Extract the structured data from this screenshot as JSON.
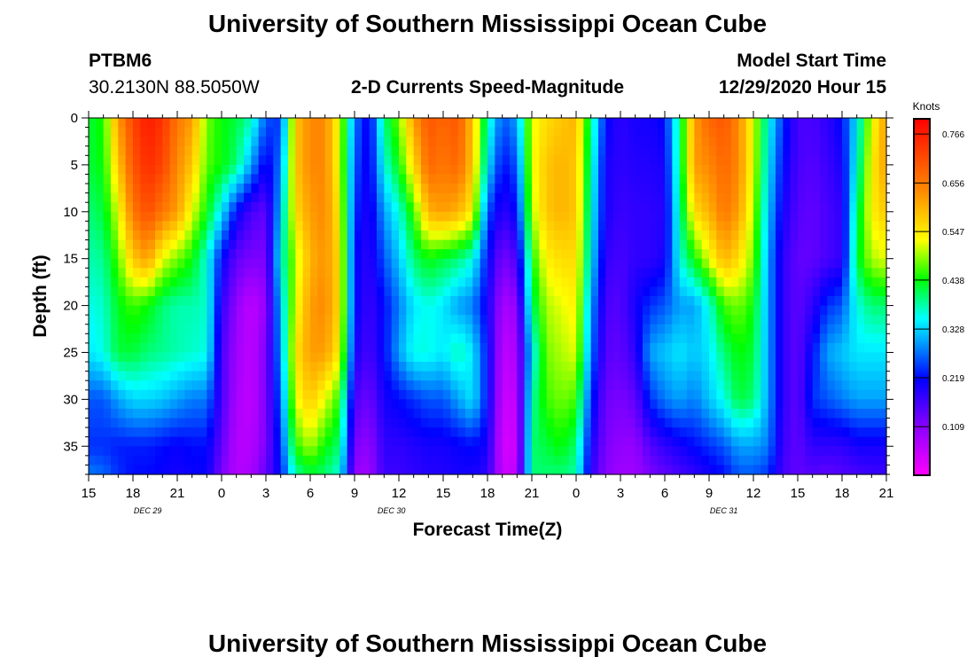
{
  "header": {
    "title": "University of Southern Mississippi Ocean Cube",
    "station_id": "PTBM6",
    "station_location": "30.2130N 88.5050W",
    "chart_subtitle": "2-D Currents Speed-Magnitude",
    "model_label": "Model Start Time",
    "model_start": "12/29/2020 Hour 15"
  },
  "footer": {
    "title": "University of Southern Mississippi Ocean Cube"
  },
  "chart_data": {
    "type": "heatmap",
    "title": "2-D Currents Speed-Magnitude",
    "xlabel": "Forecast Time(Z)",
    "ylabel": "Depth (ft)",
    "x_ticks": [
      "15",
      "18",
      "21",
      "0",
      "3",
      "6",
      "9",
      "12",
      "15",
      "18",
      "21",
      "0",
      "3",
      "6",
      "9",
      "12",
      "15",
      "18",
      "21"
    ],
    "x_range_hours": [
      0,
      54
    ],
    "date_labels": [
      {
        "label": "DEC 29",
        "hour": 4
      },
      {
        "label": "DEC 30",
        "hour": 20.5
      },
      {
        "label": "DEC 31",
        "hour": 43
      }
    ],
    "y_ticks": [
      0,
      5,
      10,
      15,
      20,
      25,
      30,
      35
    ],
    "ylim": [
      0,
      38
    ],
    "y_inverted": true,
    "colorbar": {
      "units": "Knots",
      "min": 0.0,
      "max": 0.8,
      "ticks": [
        0.766,
        0.656,
        0.547,
        0.438,
        0.328,
        0.219,
        0.109
      ]
    },
    "depths": [
      0,
      5,
      10,
      15,
      20,
      25,
      30,
      35,
      38
    ],
    "columns": [
      {
        "hour": 0,
        "values": [
          0.42,
          0.42,
          0.4,
          0.38,
          0.36,
          0.34,
          0.26,
          0.24,
          0.28
        ]
      },
      {
        "hour": 1,
        "values": [
          0.45,
          0.44,
          0.42,
          0.39,
          0.37,
          0.36,
          0.26,
          0.24,
          0.27
        ]
      },
      {
        "hour": 2,
        "values": [
          0.62,
          0.58,
          0.52,
          0.47,
          0.43,
          0.42,
          0.3,
          0.23,
          0.24
        ]
      },
      {
        "hour": 3,
        "values": [
          0.72,
          0.7,
          0.66,
          0.58,
          0.46,
          0.42,
          0.33,
          0.23,
          0.22
        ]
      },
      {
        "hour": 4,
        "values": [
          0.77,
          0.75,
          0.71,
          0.62,
          0.44,
          0.4,
          0.33,
          0.23,
          0.22
        ]
      },
      {
        "hour": 5,
        "values": [
          0.74,
          0.72,
          0.66,
          0.52,
          0.4,
          0.39,
          0.32,
          0.22,
          0.21
        ]
      },
      {
        "hour": 6,
        "values": [
          0.66,
          0.64,
          0.62,
          0.48,
          0.38,
          0.38,
          0.3,
          0.21,
          0.2
        ]
      },
      {
        "hour": 7,
        "values": [
          0.62,
          0.58,
          0.52,
          0.44,
          0.38,
          0.37,
          0.28,
          0.22,
          0.21
        ]
      },
      {
        "hour": 8,
        "values": [
          0.48,
          0.47,
          0.44,
          0.36,
          0.37,
          0.36,
          0.28,
          0.22,
          0.21
        ]
      },
      {
        "hour": 9,
        "values": [
          0.44,
          0.44,
          0.34,
          0.22,
          0.18,
          0.16,
          0.16,
          0.14,
          0.12
        ]
      },
      {
        "hour": 10,
        "values": [
          0.42,
          0.4,
          0.22,
          0.14,
          0.1,
          0.09,
          0.08,
          0.07,
          0.07
        ]
      },
      {
        "hour": 11,
        "values": [
          0.38,
          0.3,
          0.16,
          0.12,
          0.06,
          0.06,
          0.06,
          0.07,
          0.08
        ]
      },
      {
        "hour": 12,
        "values": [
          0.26,
          0.2,
          0.14,
          0.12,
          0.1,
          0.12,
          0.12,
          0.12,
          0.14
        ]
      },
      {
        "hour": 13,
        "values": [
          0.24,
          0.28,
          0.32,
          0.36,
          0.32,
          0.3,
          0.27,
          0.24,
          0.22
        ]
      },
      {
        "hour": 14,
        "values": [
          0.58,
          0.58,
          0.56,
          0.5,
          0.52,
          0.55,
          0.52,
          0.45,
          0.38
        ]
      },
      {
        "hour": 15,
        "values": [
          0.64,
          0.64,
          0.62,
          0.6,
          0.62,
          0.62,
          0.58,
          0.5,
          0.42
        ]
      },
      {
        "hour": 16,
        "values": [
          0.64,
          0.64,
          0.64,
          0.63,
          0.64,
          0.62,
          0.52,
          0.44,
          0.4
        ]
      },
      {
        "hour": 17,
        "values": [
          0.52,
          0.52,
          0.54,
          0.56,
          0.56,
          0.54,
          0.45,
          0.4,
          0.36
        ]
      },
      {
        "hour": 18,
        "values": [
          0.28,
          0.26,
          0.24,
          0.22,
          0.22,
          0.2,
          0.16,
          0.12,
          0.1
        ]
      },
      {
        "hour": 19,
        "values": [
          0.2,
          0.2,
          0.19,
          0.18,
          0.17,
          0.16,
          0.13,
          0.1,
          0.09
        ]
      },
      {
        "hour": 20,
        "values": [
          0.4,
          0.36,
          0.3,
          0.26,
          0.22,
          0.22,
          0.2,
          0.18,
          0.17
        ]
      },
      {
        "hour": 21,
        "values": [
          0.48,
          0.44,
          0.36,
          0.32,
          0.28,
          0.3,
          0.22,
          0.18,
          0.17
        ]
      },
      {
        "hour": 22,
        "values": [
          0.62,
          0.56,
          0.46,
          0.4,
          0.34,
          0.36,
          0.24,
          0.19,
          0.18
        ]
      },
      {
        "hour": 23,
        "values": [
          0.7,
          0.68,
          0.6,
          0.44,
          0.36,
          0.36,
          0.26,
          0.2,
          0.19
        ]
      },
      {
        "hour": 24,
        "values": [
          0.68,
          0.66,
          0.62,
          0.42,
          0.34,
          0.34,
          0.26,
          0.2,
          0.19
        ]
      },
      {
        "hour": 25,
        "values": [
          0.7,
          0.68,
          0.6,
          0.4,
          0.3,
          0.38,
          0.3,
          0.21,
          0.2
        ]
      },
      {
        "hour": 26,
        "values": [
          0.58,
          0.58,
          0.54,
          0.36,
          0.28,
          0.34,
          0.34,
          0.22,
          0.2
        ]
      },
      {
        "hour": 27,
        "values": [
          0.38,
          0.34,
          0.26,
          0.22,
          0.2,
          0.22,
          0.22,
          0.2,
          0.18
        ]
      },
      {
        "hour": 28,
        "values": [
          0.26,
          0.22,
          0.18,
          0.12,
          0.08,
          0.06,
          0.05,
          0.04,
          0.05
        ]
      },
      {
        "hour": 29,
        "values": [
          0.3,
          0.26,
          0.22,
          0.16,
          0.1,
          0.08,
          0.06,
          0.05,
          0.06
        ]
      },
      {
        "hour": 30,
        "values": [
          0.52,
          0.52,
          0.5,
          0.44,
          0.4,
          0.34,
          0.38,
          0.4,
          0.4
        ]
      },
      {
        "hour": 31,
        "values": [
          0.56,
          0.58,
          0.58,
          0.54,
          0.5,
          0.48,
          0.46,
          0.42,
          0.4
        ]
      },
      {
        "hour": 32,
        "values": [
          0.58,
          0.6,
          0.6,
          0.56,
          0.52,
          0.5,
          0.48,
          0.44,
          0.4
        ]
      },
      {
        "hour": 33,
        "values": [
          0.6,
          0.58,
          0.58,
          0.56,
          0.54,
          0.52,
          0.46,
          0.4,
          0.38
        ]
      },
      {
        "hour": 34,
        "values": [
          0.4,
          0.38,
          0.36,
          0.34,
          0.3,
          0.28,
          0.24,
          0.2,
          0.18
        ]
      },
      {
        "hour": 35,
        "values": [
          0.22,
          0.2,
          0.2,
          0.18,
          0.16,
          0.15,
          0.13,
          0.12,
          0.11
        ]
      },
      {
        "hour": 36,
        "values": [
          0.18,
          0.18,
          0.17,
          0.16,
          0.15,
          0.14,
          0.12,
          0.1,
          0.09
        ]
      },
      {
        "hour": 37,
        "values": [
          0.2,
          0.19,
          0.18,
          0.18,
          0.2,
          0.18,
          0.14,
          0.1,
          0.09
        ]
      },
      {
        "hour": 38,
        "values": [
          0.2,
          0.19,
          0.18,
          0.18,
          0.24,
          0.3,
          0.24,
          0.15,
          0.12
        ]
      },
      {
        "hour": 39,
        "values": [
          0.22,
          0.2,
          0.19,
          0.2,
          0.26,
          0.32,
          0.28,
          0.18,
          0.14
        ]
      },
      {
        "hour": 40,
        "values": [
          0.4,
          0.4,
          0.38,
          0.36,
          0.3,
          0.34,
          0.3,
          0.2,
          0.16
        ]
      },
      {
        "hour": 41,
        "values": [
          0.62,
          0.62,
          0.56,
          0.44,
          0.3,
          0.32,
          0.28,
          0.22,
          0.18
        ]
      },
      {
        "hour": 42,
        "values": [
          0.68,
          0.64,
          0.6,
          0.52,
          0.36,
          0.34,
          0.32,
          0.24,
          0.2
        ]
      },
      {
        "hour": 43,
        "values": [
          0.7,
          0.68,
          0.66,
          0.6,
          0.46,
          0.4,
          0.36,
          0.26,
          0.22
        ]
      },
      {
        "hour": 44,
        "values": [
          0.64,
          0.64,
          0.62,
          0.56,
          0.48,
          0.44,
          0.42,
          0.3,
          0.26
        ]
      },
      {
        "hour": 45,
        "values": [
          0.52,
          0.52,
          0.5,
          0.48,
          0.44,
          0.42,
          0.4,
          0.3,
          0.26
        ]
      },
      {
        "hour": 46,
        "values": [
          0.36,
          0.34,
          0.32,
          0.3,
          0.3,
          0.3,
          0.3,
          0.28,
          0.24
        ]
      },
      {
        "hour": 47,
        "values": [
          0.24,
          0.22,
          0.2,
          0.18,
          0.18,
          0.18,
          0.18,
          0.17,
          0.16
        ]
      },
      {
        "hour": 48,
        "values": [
          0.16,
          0.16,
          0.15,
          0.14,
          0.14,
          0.14,
          0.14,
          0.14,
          0.14
        ]
      },
      {
        "hour": 49,
        "values": [
          0.16,
          0.15,
          0.14,
          0.14,
          0.18,
          0.22,
          0.24,
          0.18,
          0.15
        ]
      },
      {
        "hour": 50,
        "values": [
          0.18,
          0.17,
          0.16,
          0.16,
          0.24,
          0.3,
          0.26,
          0.18,
          0.14
        ]
      },
      {
        "hour": 51,
        "values": [
          0.22,
          0.2,
          0.18,
          0.18,
          0.26,
          0.32,
          0.28,
          0.18,
          0.15
        ]
      },
      {
        "hour": 52,
        "values": [
          0.34,
          0.36,
          0.4,
          0.42,
          0.36,
          0.34,
          0.3,
          0.2,
          0.16
        ]
      },
      {
        "hour": 53,
        "values": [
          0.52,
          0.54,
          0.54,
          0.5,
          0.4,
          0.34,
          0.3,
          0.2,
          0.17
        ]
      },
      {
        "hour": 54,
        "values": [
          0.62,
          0.62,
          0.58,
          0.52,
          0.4,
          0.34,
          0.3,
          0.2,
          0.17
        ]
      }
    ]
  }
}
